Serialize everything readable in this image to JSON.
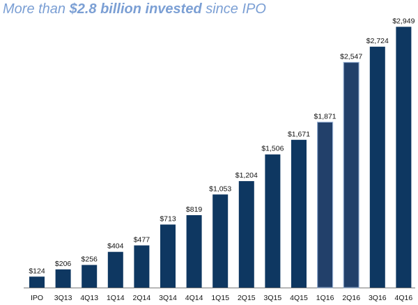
{
  "title": {
    "prefix": "More than ",
    "emphasis": "$2.8 billion invested",
    "suffix": " since IPO"
  },
  "colors": {
    "bar": "#0e3761",
    "bar_highlight": "#22406a",
    "highlight_border": "#9bb3d6",
    "title": "#7b9fd4",
    "axis": "#777777"
  },
  "chart_data": {
    "type": "bar",
    "title": "More than $2.8 billion invested since IPO",
    "xlabel": "",
    "ylabel": "",
    "categories": [
      "IPO",
      "3Q13",
      "4Q13",
      "1Q14",
      "2Q14",
      "3Q14",
      "4Q14",
      "1Q15",
      "2Q15",
      "3Q15",
      "4Q15",
      "1Q16",
      "2Q16",
      "3Q16",
      "4Q16"
    ],
    "values": [
      124,
      206,
      256,
      404,
      477,
      713,
      819,
      1053,
      1204,
      1506,
      1671,
      1871,
      2547,
      2724,
      2949
    ],
    "data_labels": [
      "$124",
      "$206",
      "$256",
      "$404",
      "$477",
      "$713",
      "$819",
      "$1,053",
      "$1,204",
      "$1,506",
      "$1,671",
      "$1,871",
      "$2,547",
      "$2,724",
      "$2,949"
    ],
    "highlighted": [
      "1Q16",
      "2Q16"
    ],
    "ylim": [
      0,
      3000
    ],
    "grid": false,
    "legend": "none"
  }
}
